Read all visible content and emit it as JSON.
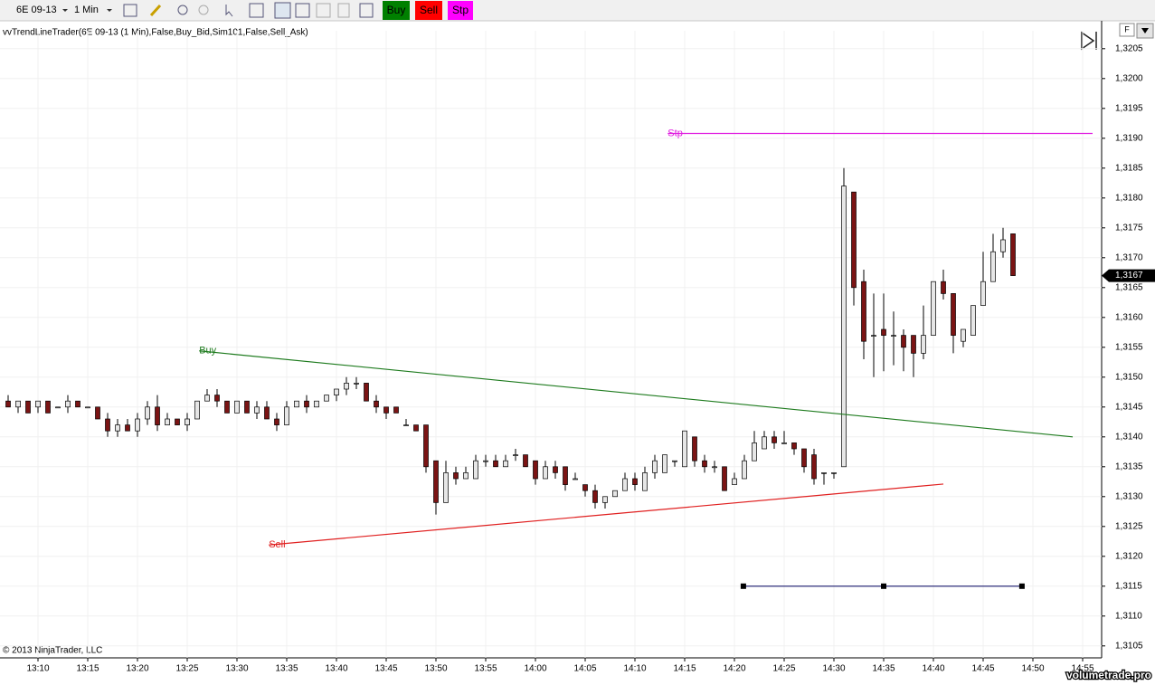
{
  "toolbar": {
    "instrument": "6E 09-13",
    "interval": "1 Min",
    "buttons": [
      {
        "label": "Buy",
        "color": "#008000"
      },
      {
        "label": "Sell",
        "color": "#ff0000"
      },
      {
        "label": "Stp",
        "color": "#ff00ff"
      }
    ]
  },
  "indicator_label": "vvTrendLineTrader(6E 09-13 (1 Min),False,Buy_Bid,Sim101,False,Sell_Ask)",
  "copyright": "© 2013 NinjaTrader, LLC",
  "watermark": "volumetrade.pro",
  "chart_data": {
    "type": "candlestick",
    "categories": [
      null,
      null,
      null,
      "13:10",
      null,
      null,
      null,
      null,
      "13:15",
      null,
      null,
      null,
      null,
      "13:20",
      null,
      null,
      null,
      null,
      "13:25",
      null,
      null,
      null,
      null,
      "13:30",
      null,
      null,
      null,
      null,
      "13:35",
      null,
      null,
      null,
      null,
      "13:40",
      null,
      null,
      null,
      null,
      "13:45",
      null,
      null,
      null,
      null,
      "13:50",
      null,
      null,
      null,
      null,
      "13:55",
      null,
      null,
      null,
      null,
      "14:00",
      null,
      null,
      null,
      null,
      "14:05",
      null,
      null,
      null,
      null,
      "14:10",
      null,
      null,
      null,
      null,
      "14:15",
      null,
      null,
      null,
      null,
      "14:20",
      null,
      null,
      null,
      null,
      "14:25",
      null,
      null,
      null,
      null,
      "14:30",
      null,
      null,
      null,
      null,
      "14:35",
      null,
      null,
      null,
      null,
      "14:40",
      null,
      null,
      null,
      null,
      "14:45",
      null,
      null,
      null,
      null,
      "14:50",
      null,
      null,
      null,
      null,
      "14:55",
      null
    ],
    "ohlc": [
      [
        1.3146,
        1.3147,
        1.3145,
        1.3145
      ],
      [
        1.3145,
        1.3146,
        1.3144,
        1.3146
      ],
      [
        1.3146,
        1.3146,
        1.3144,
        1.3144
      ],
      [
        1.3145,
        1.3146,
        1.3144,
        1.3146
      ],
      [
        1.3146,
        1.3146,
        1.3144,
        1.3144
      ],
      [
        1.3145,
        1.3145,
        1.3145,
        1.3145
      ],
      [
        1.3145,
        1.3147,
        1.3144,
        1.3146
      ],
      [
        1.3146,
        1.3146,
        1.3145,
        1.3145
      ],
      [
        1.3145,
        1.3145,
        1.3145,
        1.3145
      ],
      [
        1.3145,
        1.3145,
        1.3143,
        1.3143
      ],
      [
        1.3143,
        1.3144,
        1.314,
        1.3141
      ],
      [
        1.3141,
        1.3143,
        1.314,
        1.3142
      ],
      [
        1.3142,
        1.3143,
        1.3141,
        1.3141
      ],
      [
        1.3141,
        1.3144,
        1.314,
        1.3143
      ],
      [
        1.3143,
        1.3146,
        1.3142,
        1.3145
      ],
      [
        1.3145,
        1.3147,
        1.3141,
        1.3142
      ],
      [
        1.3142,
        1.3144,
        1.3142,
        1.3143
      ],
      [
        1.3143,
        1.3143,
        1.3142,
        1.3142
      ],
      [
        1.3142,
        1.3144,
        1.3141,
        1.3143
      ],
      [
        1.3143,
        1.3146,
        1.3143,
        1.3146
      ],
      [
        1.3146,
        1.3148,
        1.3146,
        1.3147
      ],
      [
        1.3147,
        1.3148,
        1.3145,
        1.3146
      ],
      [
        1.3146,
        1.3146,
        1.3144,
        1.3144
      ],
      [
        1.3144,
        1.3146,
        1.3144,
        1.3146
      ],
      [
        1.3146,
        1.3146,
        1.3144,
        1.3144
      ],
      [
        1.3144,
        1.3146,
        1.3143,
        1.3145
      ],
      [
        1.3145,
        1.3146,
        1.3143,
        1.3143
      ],
      [
        1.3143,
        1.3144,
        1.3141,
        1.3142
      ],
      [
        1.3142,
        1.3146,
        1.3142,
        1.3145
      ],
      [
        1.3145,
        1.3146,
        1.3145,
        1.3146
      ],
      [
        1.3146,
        1.3147,
        1.3144,
        1.3145
      ],
      [
        1.3145,
        1.3146,
        1.3145,
        1.3146
      ],
      [
        1.3146,
        1.3147,
        1.3146,
        1.3147
      ],
      [
        1.3147,
        1.3148,
        1.3146,
        1.3148
      ],
      [
        1.3148,
        1.315,
        1.3147,
        1.3149
      ],
      [
        1.3149,
        1.315,
        1.3148,
        1.3149
      ],
      [
        1.3149,
        1.3149,
        1.3146,
        1.3146
      ],
      [
        1.3146,
        1.3147,
        1.3144,
        1.3145
      ],
      [
        1.3145,
        1.3145,
        1.3143,
        1.3144
      ],
      [
        1.3145,
        1.3145,
        1.3144,
        1.3144
      ],
      [
        1.3142,
        1.3143,
        1.3142,
        1.3142
      ],
      [
        1.3142,
        1.3142,
        1.3141,
        1.3141
      ],
      [
        1.3142,
        1.3142,
        1.3134,
        1.3135
      ],
      [
        1.3136,
        1.3136,
        1.3127,
        1.3129
      ],
      [
        1.3129,
        1.3136,
        1.3129,
        1.3134
      ],
      [
        1.3134,
        1.3135,
        1.3132,
        1.3133
      ],
      [
        1.3133,
        1.3135,
        1.3133,
        1.3134
      ],
      [
        1.3133,
        1.3137,
        1.3133,
        1.3136
      ],
      [
        1.3136,
        1.3137,
        1.3135,
        1.3136
      ],
      [
        1.3136,
        1.3137,
        1.3135,
        1.3135
      ],
      [
        1.3135,
        1.3137,
        1.3135,
        1.3136
      ],
      [
        1.3137,
        1.3138,
        1.3136,
        1.3137
      ],
      [
        1.3137,
        1.3137,
        1.3135,
        1.3135
      ],
      [
        1.3136,
        1.3136,
        1.3132,
        1.3133
      ],
      [
        1.3133,
        1.3136,
        1.3133,
        1.3135
      ],
      [
        1.3135,
        1.3136,
        1.3133,
        1.3134
      ],
      [
        1.3135,
        1.3135,
        1.3131,
        1.3132
      ],
      [
        1.3133,
        1.3134,
        1.3133,
        1.3133
      ],
      [
        1.3132,
        1.3132,
        1.313,
        1.3131
      ],
      [
        1.3131,
        1.3132,
        1.3128,
        1.3129
      ],
      [
        1.3129,
        1.313,
        1.3128,
        1.313
      ],
      [
        1.313,
        1.3131,
        1.313,
        1.3131
      ],
      [
        1.3131,
        1.3134,
        1.3131,
        1.3133
      ],
      [
        1.3133,
        1.3134,
        1.3131,
        1.3132
      ],
      [
        1.3131,
        1.3135,
        1.3131,
        1.3134
      ],
      [
        1.3134,
        1.3137,
        1.3133,
        1.3136
      ],
      [
        1.3134,
        1.3137,
        1.3134,
        1.3137
      ],
      [
        1.3136,
        1.3136,
        1.3135,
        1.3136
      ],
      [
        1.3135,
        1.3141,
        1.3135,
        1.3141
      ],
      [
        1.314,
        1.314,
        1.3135,
        1.3136
      ],
      [
        1.3136,
        1.3137,
        1.3134,
        1.3135
      ],
      [
        1.3135,
        1.3136,
        1.3134,
        1.3135
      ],
      [
        1.3135,
        1.3135,
        1.3131,
        1.3131
      ],
      [
        1.3132,
        1.3134,
        1.3132,
        1.3133
      ],
      [
        1.3133,
        1.3137,
        1.3133,
        1.3136
      ],
      [
        1.3136,
        1.3141,
        1.3136,
        1.3139
      ],
      [
        1.3138,
        1.3141,
        1.3138,
        1.314
      ],
      [
        1.314,
        1.3141,
        1.3138,
        1.3139
      ],
      [
        1.3139,
        1.3141,
        1.3139,
        1.3139
      ],
      [
        1.3139,
        1.3139,
        1.3137,
        1.3138
      ],
      [
        1.3138,
        1.3138,
        1.3134,
        1.3135
      ],
      [
        1.3137,
        1.3138,
        1.3132,
        1.3133
      ],
      [
        1.3134,
        1.3134,
        1.3132,
        1.3134
      ],
      [
        1.3134,
        1.3134,
        1.3133,
        1.3134
      ],
      [
        1.3135,
        1.3185,
        1.3135,
        1.3182
      ],
      [
        1.3181,
        1.3181,
        1.3162,
        1.3165
      ],
      [
        1.3166,
        1.3168,
        1.3153,
        1.3156
      ],
      [
        1.3157,
        1.3164,
        1.315,
        1.3157
      ],
      [
        1.3158,
        1.3164,
        1.3151,
        1.3157
      ],
      [
        1.3157,
        1.3161,
        1.3152,
        1.3157
      ],
      [
        1.3157,
        1.3158,
        1.3151,
        1.3155
      ],
      [
        1.3157,
        1.3157,
        1.315,
        1.3154
      ],
      [
        1.3154,
        1.3162,
        1.3153,
        1.3157
      ],
      [
        1.3157,
        1.3166,
        1.3157,
        1.3166
      ],
      [
        1.3166,
        1.3168,
        1.3163,
        1.3164
      ],
      [
        1.3164,
        1.3164,
        1.3154,
        1.3157
      ],
      [
        1.3156,
        1.3158,
        1.3155,
        1.3158
      ],
      [
        1.3157,
        1.3162,
        1.3157,
        1.3162
      ],
      [
        1.3162,
        1.3171,
        1.3162,
        1.3166
      ],
      [
        1.3166,
        1.3174,
        1.3166,
        1.3171
      ],
      [
        1.3171,
        1.3175,
        1.317,
        1.3173
      ],
      [
        1.3174,
        1.3174,
        1.3167,
        1.3167
      ],
      null,
      null,
      null,
      null,
      null,
      null,
      null,
      null
    ],
    "up_color": "#e6e6e6",
    "down_color": "#7b1414",
    "ylim": [
      1.3103,
      1.3208
    ],
    "yticks": [
      {
        "value": 1.3105,
        "label": "1,3105"
      },
      {
        "value": 1.311,
        "label": "1,3110"
      },
      {
        "value": 1.3115,
        "label": "1,3115"
      },
      {
        "value": 1.312,
        "label": "1,3120"
      },
      {
        "value": 1.3125,
        "label": "1,3125"
      },
      {
        "value": 1.313,
        "label": "1,3130"
      },
      {
        "value": 1.3135,
        "label": "1,3135"
      },
      {
        "value": 1.314,
        "label": "1,3140"
      },
      {
        "value": 1.3145,
        "label": "1,3145"
      },
      {
        "value": 1.315,
        "label": "1,3150"
      },
      {
        "value": 1.3155,
        "label": "1,3155"
      },
      {
        "value": 1.316,
        "label": "1,3160"
      },
      {
        "value": 1.3165,
        "label": "1,3165"
      },
      {
        "value": 1.317,
        "label": "1,3170"
      },
      {
        "value": 1.3175,
        "label": "1,3175"
      },
      {
        "value": 1.318,
        "label": "1,3180"
      },
      {
        "value": 1.3185,
        "label": "1,3185"
      },
      {
        "value": 1.319,
        "label": "1,3190"
      },
      {
        "value": 1.3195,
        "label": "1,3195"
      },
      {
        "value": 1.32,
        "label": "1,3200"
      },
      {
        "value": 1.3205,
        "label": "1,3205"
      }
    ],
    "grid": true,
    "last_price": {
      "value": 1.3167,
      "label": "1,3167"
    },
    "lines": [
      {
        "label": "Buy",
        "color": "#1e7b1e",
        "x": [
          19.2,
          107
        ],
        "y": [
          1.31544,
          1.314
        ]
      },
      {
        "label": "Sell",
        "color": "#e02020",
        "x": [
          26.2,
          94
        ],
        "y": [
          1.31219,
          1.31321
        ]
      },
      {
        "label": "Stp",
        "color": "#e020e0",
        "x": [
          66.3,
          109
        ],
        "y": [
          1.31908,
          1.31908
        ]
      },
      {
        "color": "#1a1a6e",
        "x": [
          73.9,
          88,
          101.9
        ],
        "y": [
          1.3115,
          1.3115,
          1.3115
        ],
        "markers": true
      }
    ]
  }
}
